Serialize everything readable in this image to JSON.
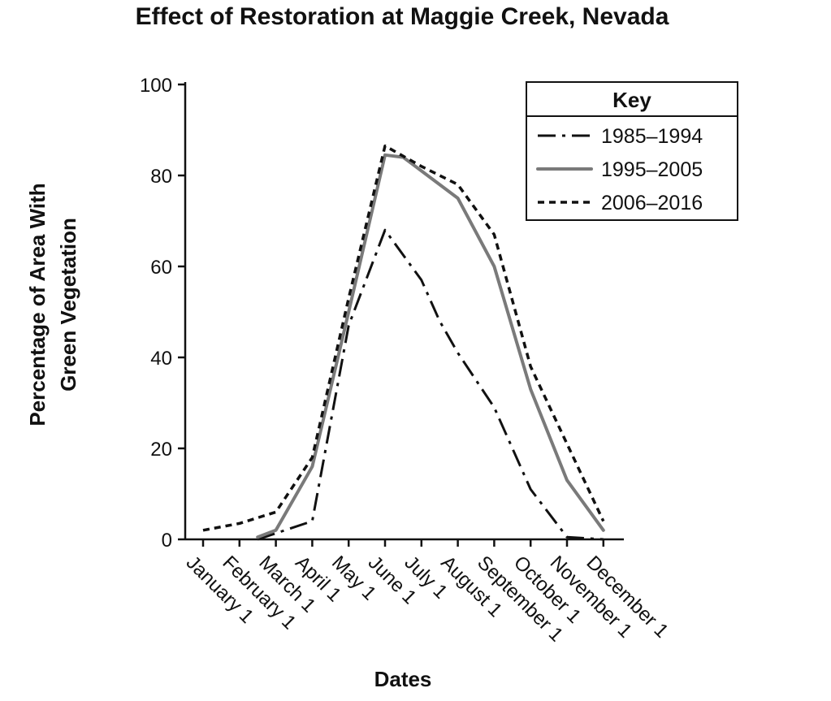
{
  "chart_data": {
    "type": "line",
    "title": "Effect of Restoration at Maggie Creek, Nevada",
    "xlabel": "Dates",
    "ylabel_lines": [
      "Percentage of Area With",
      "Green Vegetation"
    ],
    "categories": [
      "January 1",
      "February 1",
      "March 1",
      "April 1",
      "May 1",
      "June 1",
      "July 1",
      "August 1",
      "September 1",
      "October 1",
      "November 1",
      "December 1"
    ],
    "ylim": [
      0,
      100
    ],
    "yticks": [
      0,
      20,
      40,
      60,
      80,
      100
    ],
    "legend_title": "Key",
    "legend_position": "top-right",
    "series": [
      {
        "name": "1985–1994",
        "style": "dash-dot",
        "color": "#111111",
        "points": [
          {
            "x": 1.5,
            "y": 0
          },
          {
            "x": 3,
            "y": 4
          },
          {
            "x": 4,
            "y": 47
          },
          {
            "x": 5,
            "y": 68
          },
          {
            "x": 6,
            "y": 57
          },
          {
            "x": 6.5,
            "y": 48
          },
          {
            "x": 7,
            "y": 41
          },
          {
            "x": 8,
            "y": 29
          },
          {
            "x": 9,
            "y": 11
          },
          {
            "x": 10,
            "y": 0.5
          },
          {
            "x": 11,
            "y": 0
          }
        ]
      },
      {
        "name": "1995–2005",
        "style": "solid",
        "color": "#7a7a7a",
        "points": [
          {
            "x": 1.5,
            "y": 0.5
          },
          {
            "x": 2,
            "y": 2
          },
          {
            "x": 3,
            "y": 16
          },
          {
            "x": 4,
            "y": 50
          },
          {
            "x": 5,
            "y": 84.5
          },
          {
            "x": 5.5,
            "y": 84
          },
          {
            "x": 6,
            "y": 81
          },
          {
            "x": 7,
            "y": 75
          },
          {
            "x": 8,
            "y": 60
          },
          {
            "x": 9,
            "y": 33
          },
          {
            "x": 10,
            "y": 13
          },
          {
            "x": 11,
            "y": 2
          }
        ]
      },
      {
        "name": "2006–2016",
        "style": "dotted",
        "color": "#111111",
        "points": [
          {
            "x": 0,
            "y": 2
          },
          {
            "x": 1,
            "y": 3.5
          },
          {
            "x": 2,
            "y": 6
          },
          {
            "x": 3,
            "y": 18
          },
          {
            "x": 4,
            "y": 53
          },
          {
            "x": 5,
            "y": 86.5
          },
          {
            "x": 6,
            "y": 82
          },
          {
            "x": 7,
            "y": 78
          },
          {
            "x": 8,
            "y": 67
          },
          {
            "x": 9,
            "y": 38
          },
          {
            "x": 10,
            "y": 21
          },
          {
            "x": 11,
            "y": 4
          }
        ]
      }
    ]
  }
}
